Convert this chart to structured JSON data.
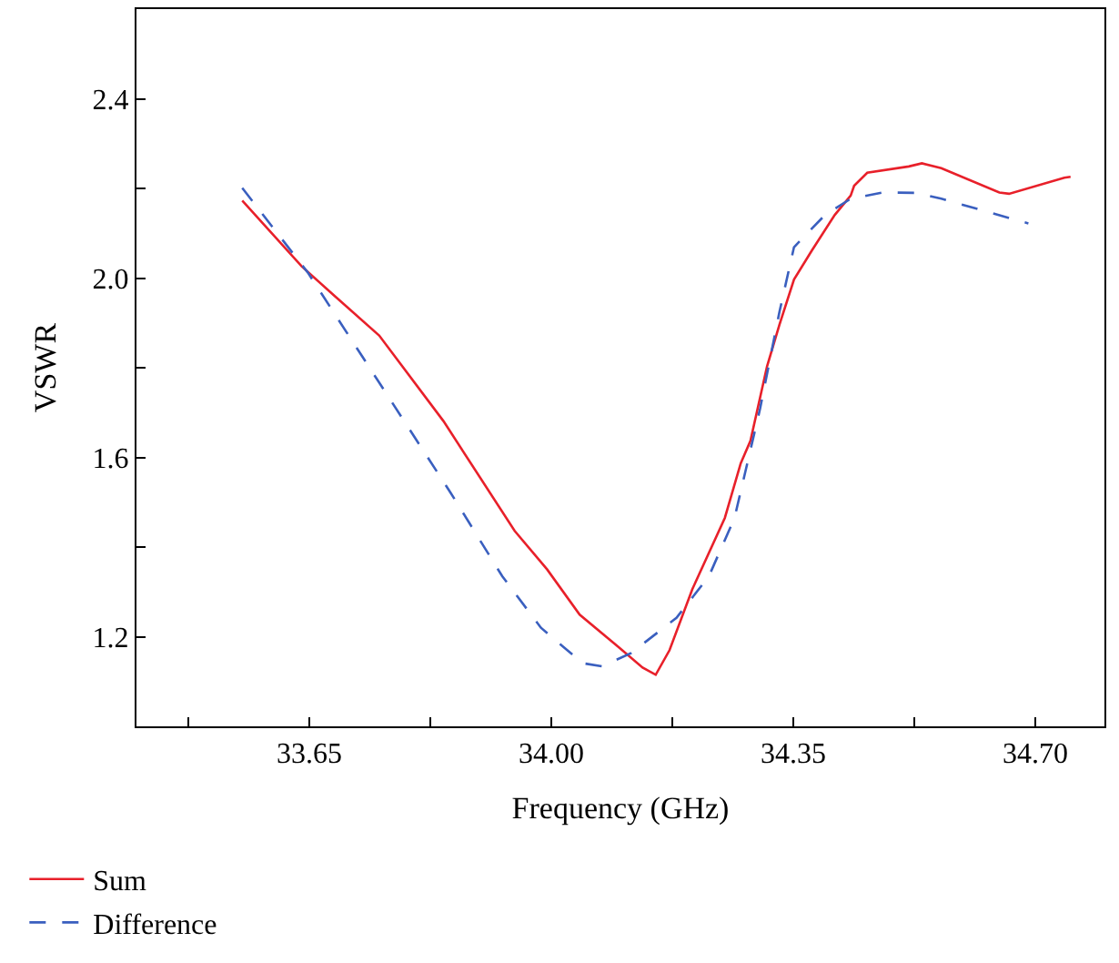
{
  "chart_data": {
    "type": "line",
    "xlabel": "Frequency (GHz)",
    "ylabel": "VSWR",
    "xlim": [
      33.4,
      34.8
    ],
    "ylim": [
      1.0,
      2.6
    ],
    "xticks": [
      {
        "value": 33.475,
        "label": null
      },
      33.65,
      {
        "value": 33.825,
        "label": null
      },
      {
        "value": 34.0,
        "label": "34.00"
      },
      {
        "value": 34.175,
        "label": null
      },
      34.35,
      {
        "value": 34.525,
        "label": null
      },
      {
        "value": 34.7,
        "label": "34.70"
      }
    ],
    "yticks": [
      {
        "value": 1.0,
        "label": null
      },
      1.2,
      {
        "value": 1.4,
        "label": null
      },
      1.6,
      {
        "value": 1.8,
        "label": null
      },
      {
        "value": 2.0,
        "label": "2.0"
      },
      {
        "value": 2.2,
        "label": null
      },
      2.4
    ],
    "legend": "bottom left",
    "marker": "none",
    "series": [
      {
        "name": "Sum",
        "color": "#e8202a",
        "line_style": "solid",
        "x": [
          33.553,
          33.639,
          33.686,
          33.751,
          33.844,
          33.947,
          33.994,
          34.041,
          34.097,
          34.132,
          34.151,
          34.171,
          34.204,
          34.251,
          34.274,
          34.288,
          34.312,
          34.33,
          34.351,
          34.377,
          34.41,
          34.433,
          34.438,
          34.457,
          34.517,
          34.536,
          34.564,
          34.648,
          34.662,
          34.742,
          34.751
        ],
        "values": [
          2.173,
          2.026,
          1.961,
          1.872,
          1.681,
          1.436,
          1.35,
          1.249,
          1.177,
          1.131,
          1.115,
          1.17,
          1.306,
          1.465,
          1.587,
          1.637,
          1.803,
          1.896,
          1.997,
          2.062,
          2.141,
          2.184,
          2.206,
          2.235,
          2.249,
          2.256,
          2.245,
          2.191,
          2.188,
          2.224,
          2.226
        ]
      },
      {
        "name": "Difference",
        "color": "#3a5fbf",
        "line_style": "dashed",
        "x": [
          33.553,
          33.648,
          33.751,
          33.854,
          33.929,
          33.985,
          34.045,
          34.073,
          34.115,
          34.181,
          34.228,
          34.265,
          34.302,
          34.33,
          34.351,
          34.396,
          34.433,
          34.48,
          34.527,
          34.564,
          34.69
        ],
        "values": [
          2.201,
          2.012,
          1.767,
          1.522,
          1.335,
          1.22,
          1.141,
          1.134,
          1.163,
          1.242,
          1.335,
          1.465,
          1.709,
          1.925,
          2.069,
          2.141,
          2.177,
          2.191,
          2.19,
          2.177,
          2.122
        ]
      }
    ]
  }
}
